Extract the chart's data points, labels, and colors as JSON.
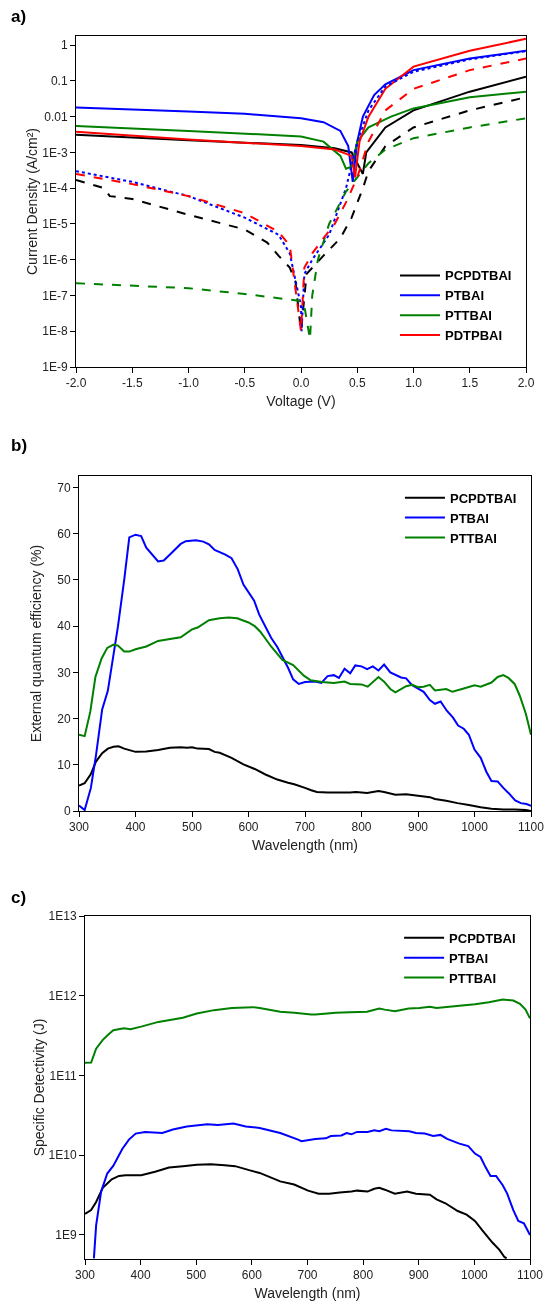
{
  "chart_data": [
    {
      "type": "line",
      "title": "a)",
      "xlabel": "Voltage (V)",
      "ylabel": "Current Density (A/cm²)",
      "log": "y",
      "legend": "bottom right",
      "grid": false,
      "xlim": [
        -2,
        2
      ],
      "xticks": [
        {
          "value": -2,
          "label": "-2.0"
        },
        {
          "value": -1.5,
          "label": "-1.5"
        },
        {
          "value": -1,
          "label": "-1.0"
        },
        {
          "value": -0.5,
          "label": "-0.5"
        },
        {
          "value": 0,
          "label": "0.0"
        },
        {
          "value": 0.5,
          "label": "0.5"
        },
        {
          "value": 1,
          "label": "1.0"
        },
        {
          "value": 1.5,
          "label": "1.5"
        },
        {
          "value": 2,
          "label": "2.0"
        }
      ],
      "ylim": [
        1e-09,
        1.8
      ],
      "yticks": [
        {
          "value": 1e-09,
          "label": "1E-9"
        },
        {
          "value": 1e-08,
          "label": "1E-8"
        },
        {
          "value": 1e-07,
          "label": "1E-7"
        },
        {
          "value": 1e-06,
          "label": "1E-6"
        },
        {
          "value": 1e-05,
          "label": "1E-5"
        },
        {
          "value": 0.0001,
          "label": "1E-4"
        },
        {
          "value": 0.001,
          "label": "1E-3"
        },
        0.01,
        0.1,
        1
      ],
      "series": [
        {
          "name": "PCPDTBAI",
          "color": "#000000",
          "line_style": "solid",
          "x": [
            -2,
            -1,
            0,
            0.3,
            0.45,
            0.5,
            0.55,
            0.58,
            0.75,
            1.0,
            1.5,
            2.0
          ],
          "values": [
            0.0031,
            0.0022,
            0.0016,
            0.0013,
            0.001,
            0.0005,
            0.00025,
            0.001,
            0.005,
            0.015,
            0.05,
            0.13
          ]
        },
        {
          "name": "PTBAI",
          "color": "#0000ff",
          "line_style": "solid",
          "x": [
            -2,
            -1,
            -0.5,
            0,
            0.2,
            0.35,
            0.42,
            0.46,
            0.5,
            0.55,
            0.65,
            0.75,
            1.0,
            1.5,
            2.0
          ],
          "values": [
            0.018,
            0.014,
            0.012,
            0.009,
            0.007,
            0.004,
            0.0015,
            0.00015,
            0.002,
            0.01,
            0.04,
            0.08,
            0.2,
            0.42,
            0.7
          ]
        },
        {
          "name": "PTTBAI",
          "color": "#008000",
          "line_style": "solid",
          "x": [
            -2,
            -1,
            0,
            0.2,
            0.35,
            0.4,
            0.45,
            0.5,
            0.6,
            0.8,
            1.0,
            1.5,
            2.0
          ],
          "values": [
            0.0055,
            0.004,
            0.0028,
            0.002,
            0.0008,
            0.00035,
            0.0004,
            0.002,
            0.005,
            0.01,
            0.017,
            0.035,
            0.05
          ]
        },
        {
          "name": "PDTPBAI",
          "color": "#ff0000",
          "line_style": "solid",
          "x": [
            -2,
            -1,
            0,
            0.3,
            0.45,
            0.48,
            0.52,
            0.6,
            0.75,
            1.0,
            1.5,
            2.0
          ],
          "values": [
            0.0038,
            0.0023,
            0.0015,
            0.0012,
            0.0008,
            0.0002,
            0.002,
            0.01,
            0.06,
            0.25,
            0.7,
            1.5
          ]
        },
        {
          "color": "#000000",
          "line_style": "dashed",
          "x": [
            -2,
            -1.75,
            -1.7,
            -1.5,
            -1,
            -0.5,
            -0.3,
            -0.2,
            -0.1,
            -0.05,
            0,
            0.05,
            0.2,
            0.35,
            0.45,
            0.55,
            0.6,
            0.75,
            1.0,
            1.5,
            2.0
          ],
          "values": [
            0.00017,
            0.0001,
            6e-05,
            5e-05,
            1.8e-05,
            7e-06,
            3e-06,
            1.3e-06,
            6e-07,
            2.5e-07,
            1e-08,
            4e-07,
            1.3e-06,
            4e-06,
            1.5e-05,
            0.0001,
            0.0003,
            0.0015,
            0.005,
            0.015,
            0.035
          ]
        },
        {
          "color": "#0000ff",
          "line_style": "dotted",
          "x": [
            -2,
            -1.5,
            -1,
            -0.5,
            -0.2,
            -0.1,
            0,
            0.005,
            0.03,
            0.1,
            0.25,
            0.4,
            0.5,
            0.6,
            0.75,
            1.0,
            1.5,
            2.0
          ],
          "values": [
            0.0003,
            0.00015,
            6e-05,
            1.5e-05,
            5e-06,
            1.5e-06,
            5e-08,
            1e-08,
            4e-07,
            1e-06,
            5e-06,
            0.0001,
            0.002,
            0.015,
            0.07,
            0.18,
            0.4,
            0.68
          ]
        },
        {
          "color": "#008000",
          "line_style": "dashed",
          "x": [
            -2,
            -1,
            -0.5,
            0,
            0.03,
            0.08,
            0.1,
            0.15,
            0.25,
            0.4,
            0.5,
            0.6,
            0.75,
            1.0,
            1.5,
            2.0
          ],
          "values": [
            2.2e-07,
            1.6e-07,
            1.1e-07,
            7e-08,
            5e-08,
            6e-09,
            1e-07,
            1e-06,
            1e-05,
            8e-05,
            0.0002,
            0.0005,
            0.0012,
            0.0025,
            0.005,
            0.009
          ]
        },
        {
          "color": "#ff0000",
          "line_style": "dashed",
          "x": [
            -2,
            -1.5,
            -1,
            -0.5,
            -0.2,
            -0.1,
            0,
            0.03,
            0.1,
            0.2,
            0.3,
            0.4,
            0.5,
            0.6,
            0.75,
            1.0,
            1.5,
            2.0
          ],
          "values": [
            0.00025,
            0.00013,
            6e-05,
            2e-05,
            6e-06,
            2.5e-06,
            1e-08,
            6e-07,
            1.5e-06,
            4e-06,
            1e-05,
            4e-05,
            0.0002,
            0.002,
            0.015,
            0.06,
            0.2,
            0.42
          ]
        }
      ]
    },
    {
      "type": "line",
      "title": "b)",
      "xlabel": "Wavelength (nm)",
      "ylabel": "External quantum efficiency (%)",
      "legend": "top right",
      "grid": false,
      "xlim": [
        300,
        1100
      ],
      "xticks": [
        300,
        400,
        500,
        600,
        700,
        800,
        900,
        1000,
        1100
      ],
      "ylim": [
        0,
        72.5
      ],
      "yticks": [
        0,
        10,
        20,
        30,
        40,
        50,
        60,
        70
      ],
      "series": [
        {
          "name": "PCPDTBAI",
          "color": "#000000",
          "x": [
            300,
            310,
            321,
            330,
            341,
            351,
            361,
            370,
            380,
            400,
            419,
            440,
            461,
            480,
            491,
            500,
            510,
            530,
            540,
            549,
            570,
            591,
            611,
            630,
            651,
            670,
            681,
            700,
            711,
            721,
            740,
            760,
            780,
            790,
            810,
            830,
            840,
            860,
            879,
            900,
            921,
            930,
            950,
            970,
            990,
            1011,
            1030,
            1051,
            1071,
            1091,
            1100
          ],
          "values": [
            5.5,
            6,
            8,
            10.7,
            12.5,
            13.5,
            13.9,
            14,
            13.5,
            12.8,
            12.9,
            13.2,
            13.7,
            13.8,
            13.7,
            13.8,
            13.5,
            13.4,
            12.8,
            12.6,
            11.5,
            10.1,
            9.1,
            7.9,
            6.8,
            6.1,
            5.8,
            5,
            4.5,
            4.1,
            4,
            4,
            4,
            4.1,
            3.9,
            4.3,
            4.1,
            3.5,
            3.6,
            3.3,
            3,
            2.6,
            2.2,
            1.7,
            1.3,
            0.8,
            0.5,
            0.3,
            0.3,
            0.2,
            0
          ]
        },
        {
          "name": "PTBAI",
          "color": "#0000ff",
          "x": [
            300,
            310,
            321,
            330,
            341,
            351,
            369,
            380,
            389,
            400,
            410,
            419,
            440,
            450,
            461,
            480,
            489,
            507,
            520,
            530,
            540,
            559,
            570,
            581,
            591,
            610,
            619,
            640,
            651,
            670,
            679,
            689,
            700,
            718,
            729,
            740,
            751,
            760,
            770,
            780,
            789,
            800,
            810,
            820,
            830,
            840,
            851,
            870,
            879,
            889,
            910,
            921,
            930,
            940,
            951,
            962,
            971,
            981,
            990,
            1000,
            1011,
            1021,
            1030,
            1041,
            1051,
            1061,
            1072,
            1082,
            1092,
            1100
          ],
          "values": [
            1.2,
            0.2,
            5,
            12,
            22,
            26,
            40,
            50,
            59.2,
            59.8,
            59.5,
            57,
            54,
            54.2,
            55.5,
            57.8,
            58.4,
            58.6,
            58.3,
            57.7,
            56.5,
            55.5,
            54.7,
            52.3,
            49,
            45.5,
            42.5,
            37.5,
            35.5,
            31,
            28.5,
            27.5,
            27.9,
            28,
            27.7,
            29.2,
            29.4,
            28.8,
            30.8,
            29.8,
            31.5,
            31.3,
            30.7,
            31.3,
            30.4,
            31.7,
            30,
            28.9,
            28.7,
            27.3,
            25.8,
            24,
            23.2,
            23.7,
            21.7,
            20.2,
            18.5,
            17.8,
            16.5,
            13.3,
            11.5,
            8.5,
            6.5,
            6.4,
            5,
            3.8,
            2.3,
            1.7,
            1.5,
            1.1
          ]
        },
        {
          "name": "PTTBAI",
          "color": "#008000",
          "x": [
            300,
            310,
            320,
            329,
            340,
            350,
            361,
            369,
            380,
            389,
            400,
            419,
            440,
            461,
            480,
            500,
            510,
            530,
            549,
            565,
            580,
            600,
            611,
            621,
            640,
            660,
            679,
            698,
            710,
            730,
            751,
            770,
            780,
            800,
            811,
            830,
            840,
            851,
            860,
            879,
            890,
            900,
            910,
            921,
            930,
            950,
            961,
            981,
            1000,
            1011,
            1030,
            1041,
            1051,
            1060,
            1071,
            1080,
            1091,
            1100
          ],
          "values": [
            16.5,
            16.2,
            21.5,
            29,
            33,
            35.3,
            36,
            35.8,
            34.5,
            34.5,
            35,
            35.6,
            36.8,
            37.2,
            37.6,
            39.3,
            39.7,
            41.3,
            41.7,
            41.9,
            41.7,
            40.8,
            40,
            38.8,
            35.6,
            32.7,
            31.6,
            29.3,
            28.3,
            27.9,
            27.7,
            28,
            27.5,
            27.4,
            26.9,
            29,
            28,
            26.4,
            25.7,
            27,
            27.3,
            26.8,
            26.9,
            27.3,
            26.1,
            26.4,
            25.8,
            26.5,
            27.2,
            26.9,
            27.8,
            29,
            29.4,
            28.8,
            27.5,
            25,
            21,
            16.5
          ]
        }
      ]
    },
    {
      "type": "line",
      "title": "c)",
      "xlabel": "Wavelength (nm)",
      "ylabel": "Specific Detectivity (J)",
      "log": "y",
      "legend": "top right",
      "grid": false,
      "xlim": [
        300,
        1100
      ],
      "xticks": [
        300,
        400,
        500,
        600,
        700,
        800,
        900,
        1000,
        1100
      ],
      "ylim": [
        500000000.0,
        10000000000000.0
      ],
      "yticks": [
        {
          "value": 1000000000.0,
          "label": "1E9"
        },
        {
          "value": 10000000000.0,
          "label": "1E10"
        },
        {
          "value": 100000000000.0,
          "label": "1E11"
        },
        {
          "value": 1000000000000.0,
          "label": "1E12"
        },
        {
          "value": 10000000000000.0,
          "label": "1E13"
        }
      ],
      "series": [
        {
          "name": "PCPDTBAI",
          "color": "#000000",
          "x": [
            300,
            311,
            320,
            332,
            348,
            361,
            373,
            401,
            426,
            451,
            476,
            501,
            526,
            551,
            570,
            595,
            614,
            651,
            676,
            701,
            720,
            739,
            758,
            779,
            789,
            808,
            820,
            829,
            839,
            857,
            879,
            895,
            920,
            932,
            948,
            970,
            986,
            1001,
            1014,
            1032,
            1045,
            1054,
            1058
          ],
          "values": [
            1840000000.0,
            2050000000.0,
            2600000000.0,
            3900000000.0,
            5000000000.0,
            5500000000.0,
            5600000000.0,
            5600000000.0,
            6200000000.0,
            7000000000.0,
            7300000000.0,
            7600000000.0,
            7700000000.0,
            7500000000.0,
            7300000000.0,
            6500000000.0,
            6000000000.0,
            4700000000.0,
            4300000000.0,
            3600000000.0,
            3300000000.0,
            3300000000.0,
            3400000000.0,
            3500000000.0,
            3600000000.0,
            3500000000.0,
            3800000000.0,
            3900000000.0,
            3700000000.0,
            3300000000.0,
            3500000000.0,
            3300000000.0,
            3200000000.0,
            2800000000.0,
            2500000000.0,
            2000000000.0,
            1800000000.0,
            1500000000.0,
            1150000000.0,
            810000000.0,
            650000000.0,
            530000000.0,
            510000000.0
          ]
        },
        {
          "name": "PTBAI",
          "color": "#0000ff",
          "x": [
            316,
            320,
            329,
            340,
            351,
            367,
            379,
            391,
            408,
            439,
            458,
            483,
            520,
            539,
            567,
            589,
            614,
            651,
            683,
            689,
            714,
            733,
            742,
            761,
            770,
            779,
            789,
            808,
            820,
            829,
            841,
            851,
            883,
            895,
            911,
            926,
            939,
            951,
            973,
            989,
            1001,
            1011,
            1020,
            1029,
            1039,
            1051,
            1059,
            1070,
            1079,
            1089,
            1100
          ],
          "values": [
            510000000.0,
            1320000000.0,
            3500000000.0,
            5900000000.0,
            7400000000.0,
            12000000000.0,
            15700000000.0,
            18700000000.0,
            19600000000.0,
            19000000000.0,
            21000000000.0,
            23000000000.0,
            24500000000.0,
            24000000000.0,
            25000000000.0,
            23000000000.0,
            22000000000.0,
            19000000000.0,
            15700000000.0,
            15000000000.0,
            16000000000.0,
            16300000000.0,
            17400000000.0,
            17700000000.0,
            19000000000.0,
            18300000000.0,
            19600000000.0,
            19600000000.0,
            20500000000.0,
            20000000000.0,
            21500000000.0,
            20500000000.0,
            20000000000.0,
            19000000000.0,
            18700000000.0,
            17400000000.0,
            18000000000.0,
            16000000000.0,
            14000000000.0,
            13000000000.0,
            10500000000.0,
            9500000000.0,
            7100000000.0,
            5500000000.0,
            5500000000.0,
            4200000000.0,
            3300000000.0,
            2050000000.0,
            1500000000.0,
            1400000000.0,
            1000000000.0
          ]
        },
        {
          "name": "PTTBAI",
          "color": "#008000",
          "x": [
            300,
            311,
            320,
            332,
            342,
            351,
            370,
            382,
            401,
            432,
            476,
            501,
            532,
            564,
            601,
            614,
            651,
            676,
            707,
            714,
            751,
            776,
            807,
            829,
            839,
            857,
            882,
            901,
            920,
            932,
            964,
            1001,
            1026,
            1051,
            1070,
            1082,
            1092,
            1100
          ],
          "values": [
            144000000000.0,
            145000000000.0,
            217000000000.0,
            280000000000.0,
            327000000000.0,
            370000000000.0,
            390000000000.0,
            380000000000.0,
            410000000000.0,
            470000000000.0,
            530000000000.0,
            600000000000.0,
            660000000000.0,
            700000000000.0,
            720000000000.0,
            700000000000.0,
            630000000000.0,
            610000000000.0,
            580000000000.0,
            580000000000.0,
            610000000000.0,
            620000000000.0,
            630000000000.0,
            690000000000.0,
            670000000000.0,
            640000000000.0,
            690000000000.0,
            700000000000.0,
            730000000000.0,
            700000000000.0,
            740000000000.0,
            780000000000.0,
            830000000000.0,
            900000000000.0,
            870000000000.0,
            790000000000.0,
            670000000000.0,
            520000000000.0
          ]
        }
      ]
    }
  ]
}
